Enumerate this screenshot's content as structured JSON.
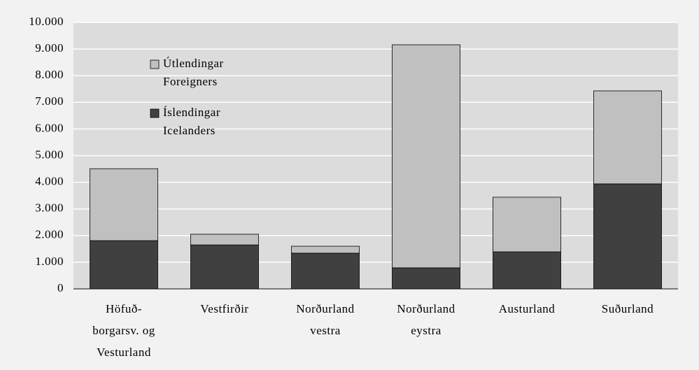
{
  "chart_data": {
    "type": "stacked-bar",
    "categories": [
      "Höfuð-\nborgarsv. og\nVesturland",
      "Vestfirðir",
      "Norðurland\nvestra",
      "Norðurland\neystra",
      "Austurland",
      "Suðurland"
    ],
    "series": [
      {
        "name": "Íslendingar\nIcelanders",
        "color": "#404040",
        "values": [
          1810,
          1650,
          1340,
          790,
          1390,
          3940
        ]
      },
      {
        "name": "Útlendingar\nForeigners",
        "color": "#c0c0c0",
        "values": [
          2700,
          400,
          260,
          8370,
          2050,
          3490
        ]
      }
    ],
    "ylim": [
      0,
      10000
    ],
    "yticks": [
      {
        "value": 0,
        "label": "0"
      },
      {
        "value": 1000,
        "label": "1.000"
      },
      {
        "value": 2000,
        "label": "2.000"
      },
      {
        "value": 3000,
        "label": "3.000"
      },
      {
        "value": 4000,
        "label": "4.000"
      },
      {
        "value": 5000,
        "label": "5.000"
      },
      {
        "value": 6000,
        "label": "6.000"
      },
      {
        "value": 7000,
        "label": "7.000"
      },
      {
        "value": 8000,
        "label": "8.000"
      },
      {
        "value": 9000,
        "label": "9.000"
      },
      {
        "value": 10000,
        "label": "10.000"
      }
    ],
    "grid": true
  }
}
